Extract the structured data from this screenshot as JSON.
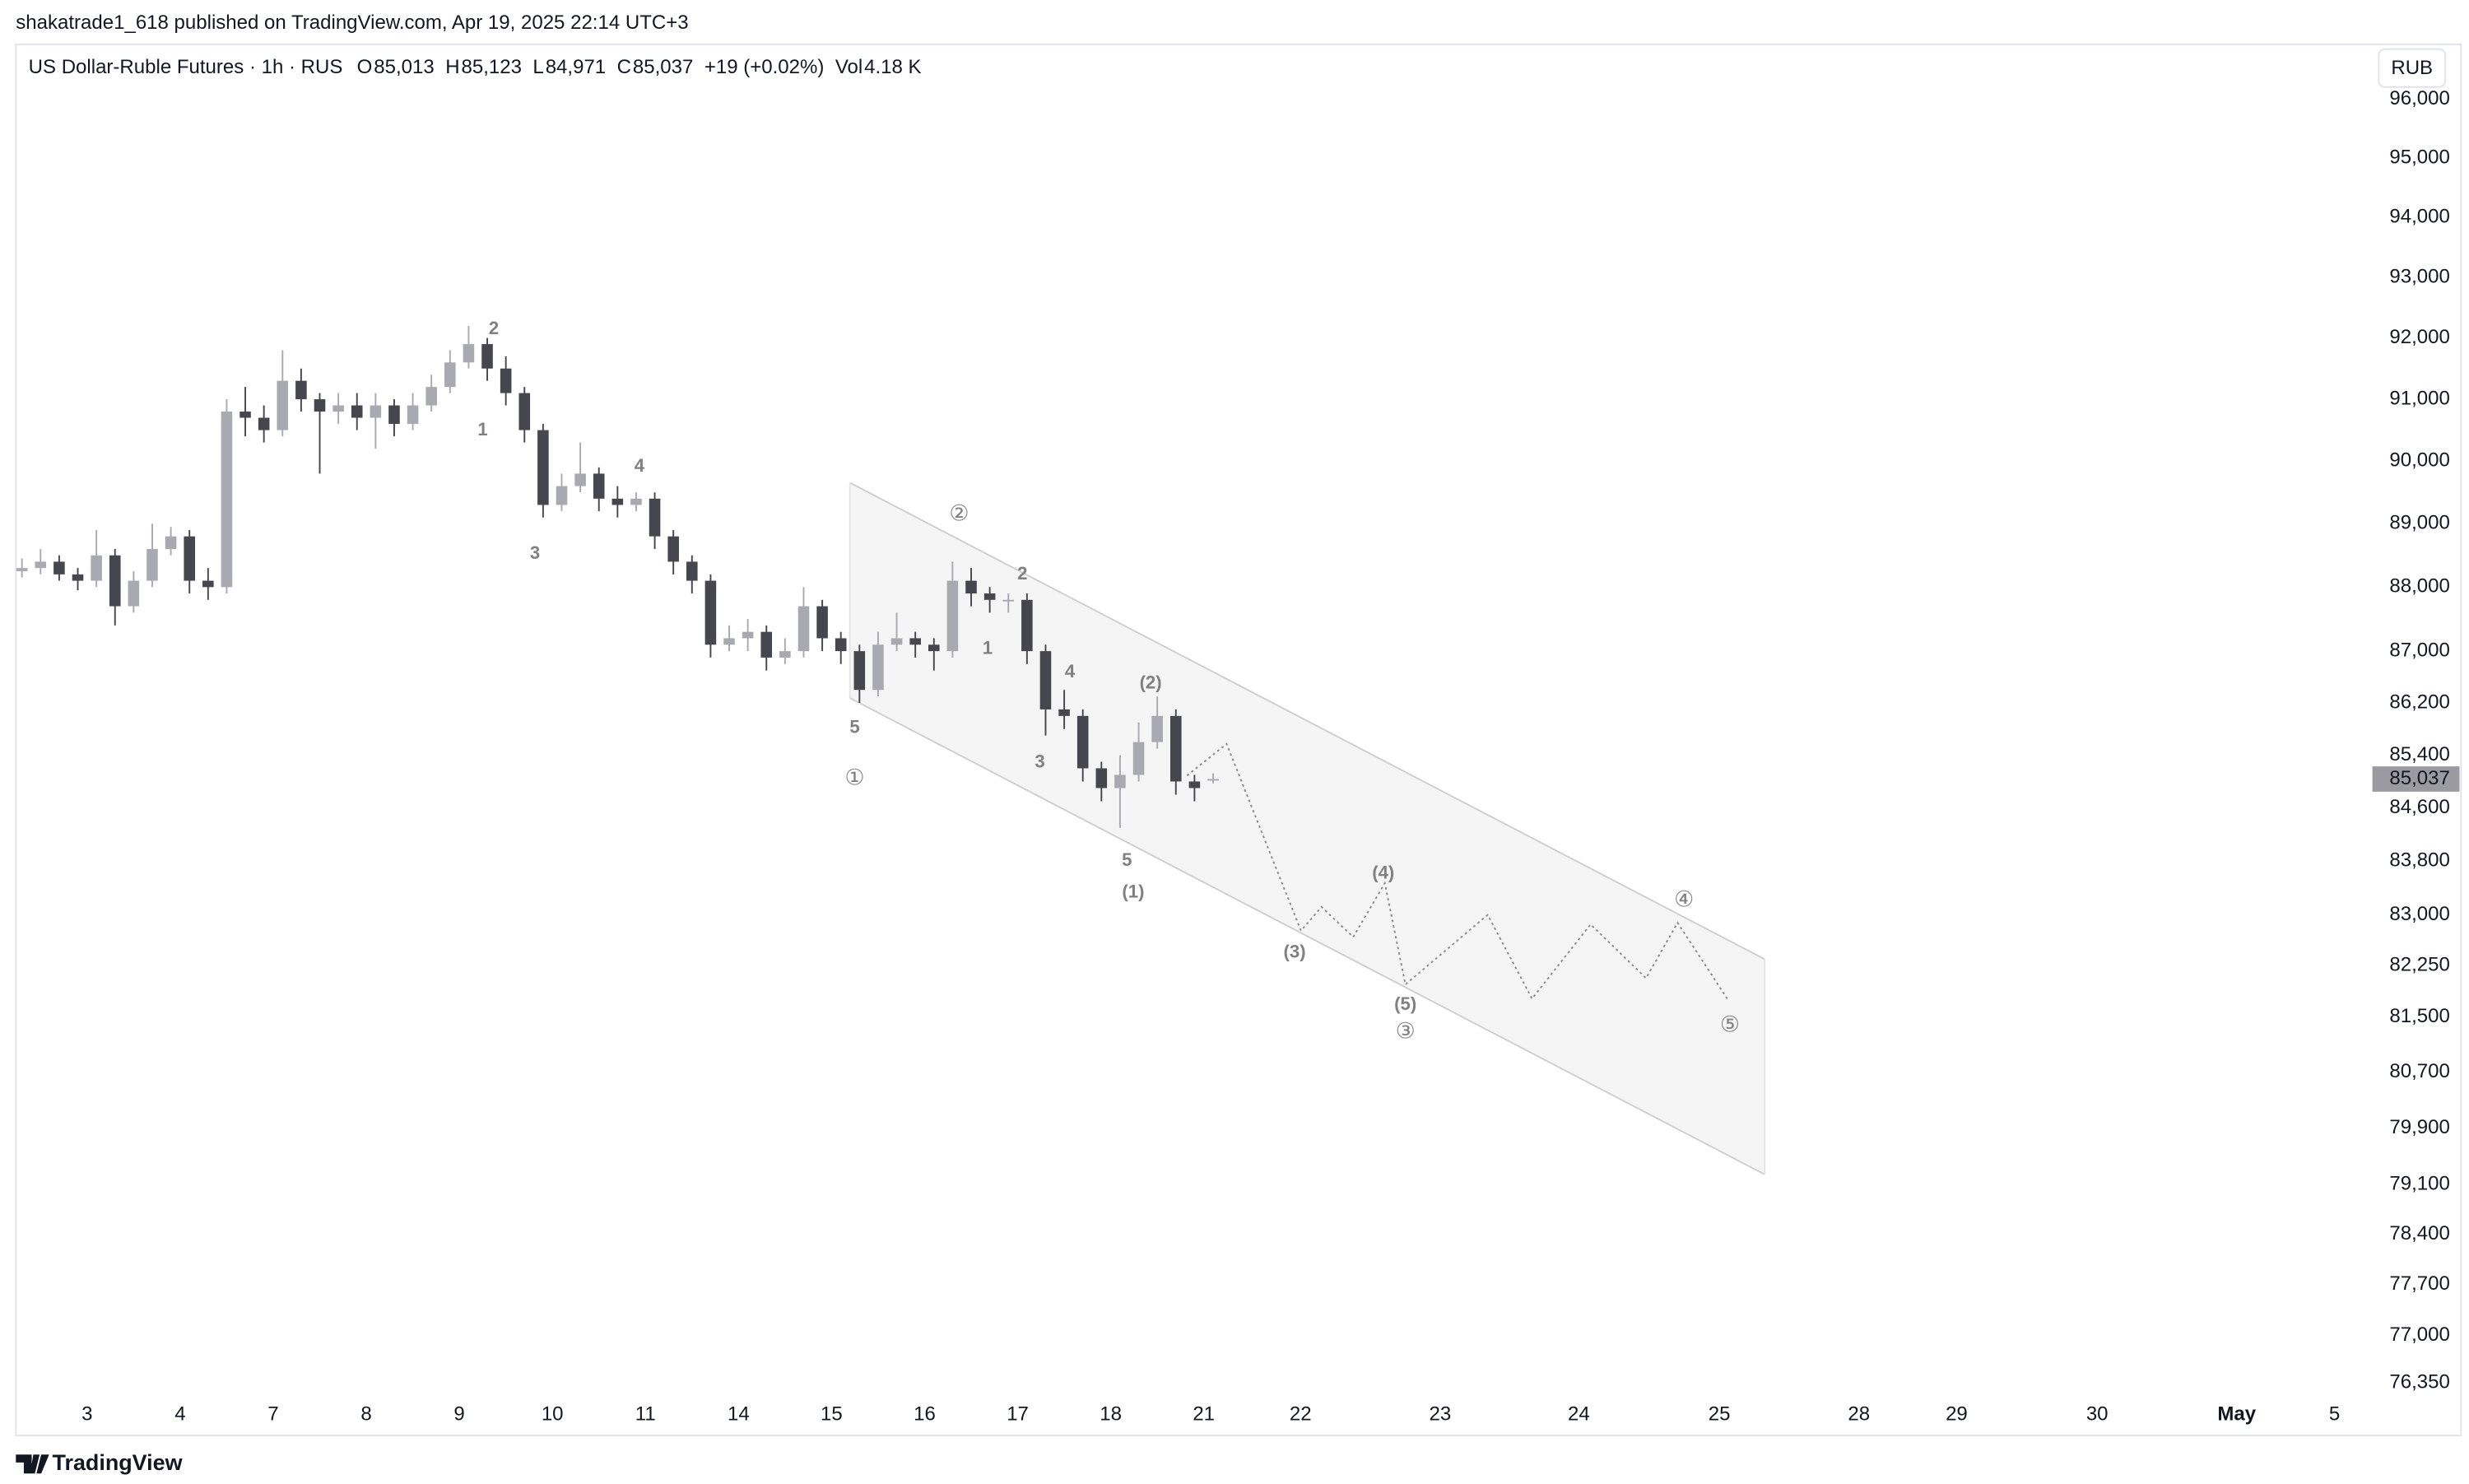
{
  "header": {
    "publisher": "shakatrade1_618 published on TradingView.com, Apr 19, 2025 22:14 UTC+3",
    "currency": "RUB",
    "brand": "TradingView"
  },
  "chart_data": {
    "type": "candlestick",
    "title": "US Dollar-Ruble Futures · 1h · RUS",
    "legend_items": [
      {
        "label": "O",
        "value": "85,013"
      },
      {
        "label": "H",
        "value": "85,123"
      },
      {
        "label": "L",
        "value": "84,971"
      },
      {
        "label": "C",
        "value": "85,037"
      }
    ],
    "change": "+19 (+0.02%)",
    "volume_label": "Vol",
    "volume": "4.18 K",
    "last_price_label": "85,037",
    "log_scale": true,
    "x": [
      -0.7,
      -0.5,
      -0.3,
      -0.1,
      0.1,
      0.3,
      0.5,
      0.7,
      0.9,
      1.1,
      1.3,
      1.5,
      1.7,
      1.9,
      2.1,
      2.3,
      2.5,
      2.7,
      2.9,
      3.1,
      3.3,
      3.5,
      3.7,
      3.9,
      4.1,
      4.3,
      4.5,
      4.7,
      4.9,
      5.1,
      5.3,
      5.5,
      5.7,
      5.9,
      6.1,
      6.3,
      6.5,
      6.7,
      6.9,
      7.1,
      7.3,
      7.5,
      7.7,
      7.9,
      8.1,
      8.3,
      8.5,
      8.7,
      8.9,
      9.1,
      9.3,
      9.5,
      9.7,
      9.9,
      10.1,
      10.3,
      10.5,
      10.7,
      10.9,
      11.1,
      11.3,
      11.5,
      11.7,
      11.9,
      12.1
    ],
    "open": [
      88250,
      88300,
      88400,
      88200,
      88100,
      88500,
      87700,
      88100,
      88600,
      88800,
      88100,
      88000,
      90800,
      90700,
      90500,
      91300,
      91000,
      90800,
      90900,
      90700,
      90900,
      90600,
      90900,
      91200,
      91600,
      91900,
      91500,
      91100,
      90500,
      89300,
      89600,
      89800,
      89400,
      89300,
      89400,
      88800,
      88400,
      88100,
      87100,
      87200,
      87300,
      86900,
      87000,
      87700,
      87200,
      87000,
      86400,
      87100,
      87200,
      87100,
      87000,
      88100,
      87900,
      87800,
      87800,
      87000,
      86100,
      86000,
      85200,
      84900,
      85100,
      85600,
      86000,
      85000,
      85013
    ],
    "high": [
      88450,
      88600,
      88500,
      88300,
      88900,
      88600,
      88250,
      89000,
      88950,
      88900,
      88300,
      91000,
      91200,
      90900,
      91800,
      91500,
      91100,
      91100,
      91100,
      91100,
      91000,
      91100,
      91400,
      91800,
      92200,
      92000,
      91700,
      91200,
      90600,
      89800,
      90300,
      89900,
      89600,
      89500,
      89500,
      88900,
      88500,
      88200,
      87400,
      87500,
      87400,
      87200,
      88000,
      87800,
      87300,
      87100,
      87300,
      87600,
      87300,
      87200,
      88400,
      88300,
      88000,
      87900,
      87900,
      87100,
      86400,
      86100,
      85300,
      85400,
      85900,
      86300,
      86100,
      85100,
      85123
    ],
    "low": [
      88150,
      88200,
      88100,
      87950,
      88000,
      87400,
      87600,
      88000,
      88500,
      87900,
      87800,
      87900,
      90400,
      90300,
      90400,
      90800,
      89800,
      90600,
      90500,
      90200,
      90400,
      90500,
      90800,
      91100,
      91500,
      91300,
      90900,
      90300,
      89100,
      89200,
      89500,
      89200,
      89100,
      89200,
      88600,
      88200,
      87900,
      86900,
      87000,
      87000,
      86700,
      86800,
      86900,
      87000,
      86800,
      86200,
      86300,
      87000,
      86900,
      86700,
      86900,
      87700,
      87600,
      87600,
      86800,
      85700,
      85800,
      85000,
      84700,
      84300,
      85000,
      85500,
      84800,
      84700,
      84971
    ],
    "close": [
      88300,
      88400,
      88200,
      88100,
      88500,
      87700,
      88100,
      88600,
      88800,
      88100,
      88000,
      90800,
      90700,
      90500,
      91300,
      91000,
      90800,
      90900,
      90700,
      90900,
      90600,
      90900,
      91200,
      91600,
      91900,
      91500,
      91100,
      90500,
      89300,
      89600,
      89800,
      89400,
      89300,
      89400,
      88800,
      88400,
      88100,
      87100,
      87200,
      87300,
      86900,
      87000,
      87700,
      87200,
      87000,
      86400,
      87100,
      87200,
      87100,
      87000,
      88100,
      87900,
      87800,
      87800,
      87000,
      86100,
      86000,
      85200,
      84900,
      85100,
      85600,
      86000,
      85000,
      84900,
      85037
    ],
    "up_color": "#a9a9b1",
    "down_color": "#46464e",
    "xlim": [
      -0.77,
      24.4
    ],
    "xticks": [
      {
        "value": 0,
        "label": "3"
      },
      {
        "value": 1,
        "label": "4"
      },
      {
        "value": 2,
        "label": "7"
      },
      {
        "value": 3,
        "label": "8"
      },
      {
        "value": 4,
        "label": "9"
      },
      {
        "value": 5,
        "label": "10"
      },
      {
        "value": 6,
        "label": "11"
      },
      {
        "value": 7,
        "label": "14"
      },
      {
        "value": 8,
        "label": "15"
      },
      {
        "value": 9,
        "label": "16"
      },
      {
        "value": 10,
        "label": "17"
      },
      {
        "value": 11,
        "label": "18"
      },
      {
        "value": 12,
        "label": "21"
      },
      {
        "value": 13.04,
        "label": "22"
      },
      {
        "value": 14.54,
        "label": "23"
      },
      {
        "value": 16.03,
        "label": "24"
      },
      {
        "value": 17.54,
        "label": "25"
      },
      {
        "value": 19.04,
        "label": "28"
      },
      {
        "value": 20.09,
        "label": "29"
      },
      {
        "value": 21.6,
        "label": "30"
      },
      {
        "value": 23.1,
        "label": "May"
      },
      {
        "value": 24.15,
        "label": "5"
      }
    ],
    "ylim": [
      76150,
      96950
    ],
    "yticks": [
      {
        "value": 96000,
        "label": "96,000"
      },
      {
        "value": 95000,
        "label": "95,000"
      },
      {
        "value": 94000,
        "label": "94,000"
      },
      {
        "value": 93000,
        "label": "93,000"
      },
      {
        "value": 92000,
        "label": "92,000"
      },
      {
        "value": 91000,
        "label": "91,000"
      },
      {
        "value": 90000,
        "label": "90,000"
      },
      {
        "value": 89000,
        "label": "89,000"
      },
      {
        "value": 88000,
        "label": "88,000"
      },
      {
        "value": 87000,
        "label": "87,000"
      },
      {
        "value": 86200,
        "label": "86,200"
      },
      {
        "value": 85400,
        "label": "85,400"
      },
      {
        "value": 84600,
        "label": "84,600"
      },
      {
        "value": 83800,
        "label": "83,800"
      },
      {
        "value": 83000,
        "label": "83,000"
      },
      {
        "value": 82250,
        "label": "82,250"
      },
      {
        "value": 81500,
        "label": "81,500"
      },
      {
        "value": 80700,
        "label": "80,700"
      },
      {
        "value": 79900,
        "label": "79,900"
      },
      {
        "value": 79100,
        "label": "79,100"
      },
      {
        "value": 78400,
        "label": "78,400"
      },
      {
        "value": 77700,
        "label": "77,700"
      },
      {
        "value": 77000,
        "label": "77,000"
      },
      {
        "value": 76350,
        "label": "76,350"
      }
    ],
    "annotations": [
      "2",
      "1",
      "3",
      "4",
      "5",
      "①",
      "②",
      "2",
      "1",
      "4",
      "3",
      "(2)",
      "5",
      "(1)",
      "(3)",
      "(4)",
      "(5)",
      "③",
      "④",
      "⑤"
    ]
  }
}
